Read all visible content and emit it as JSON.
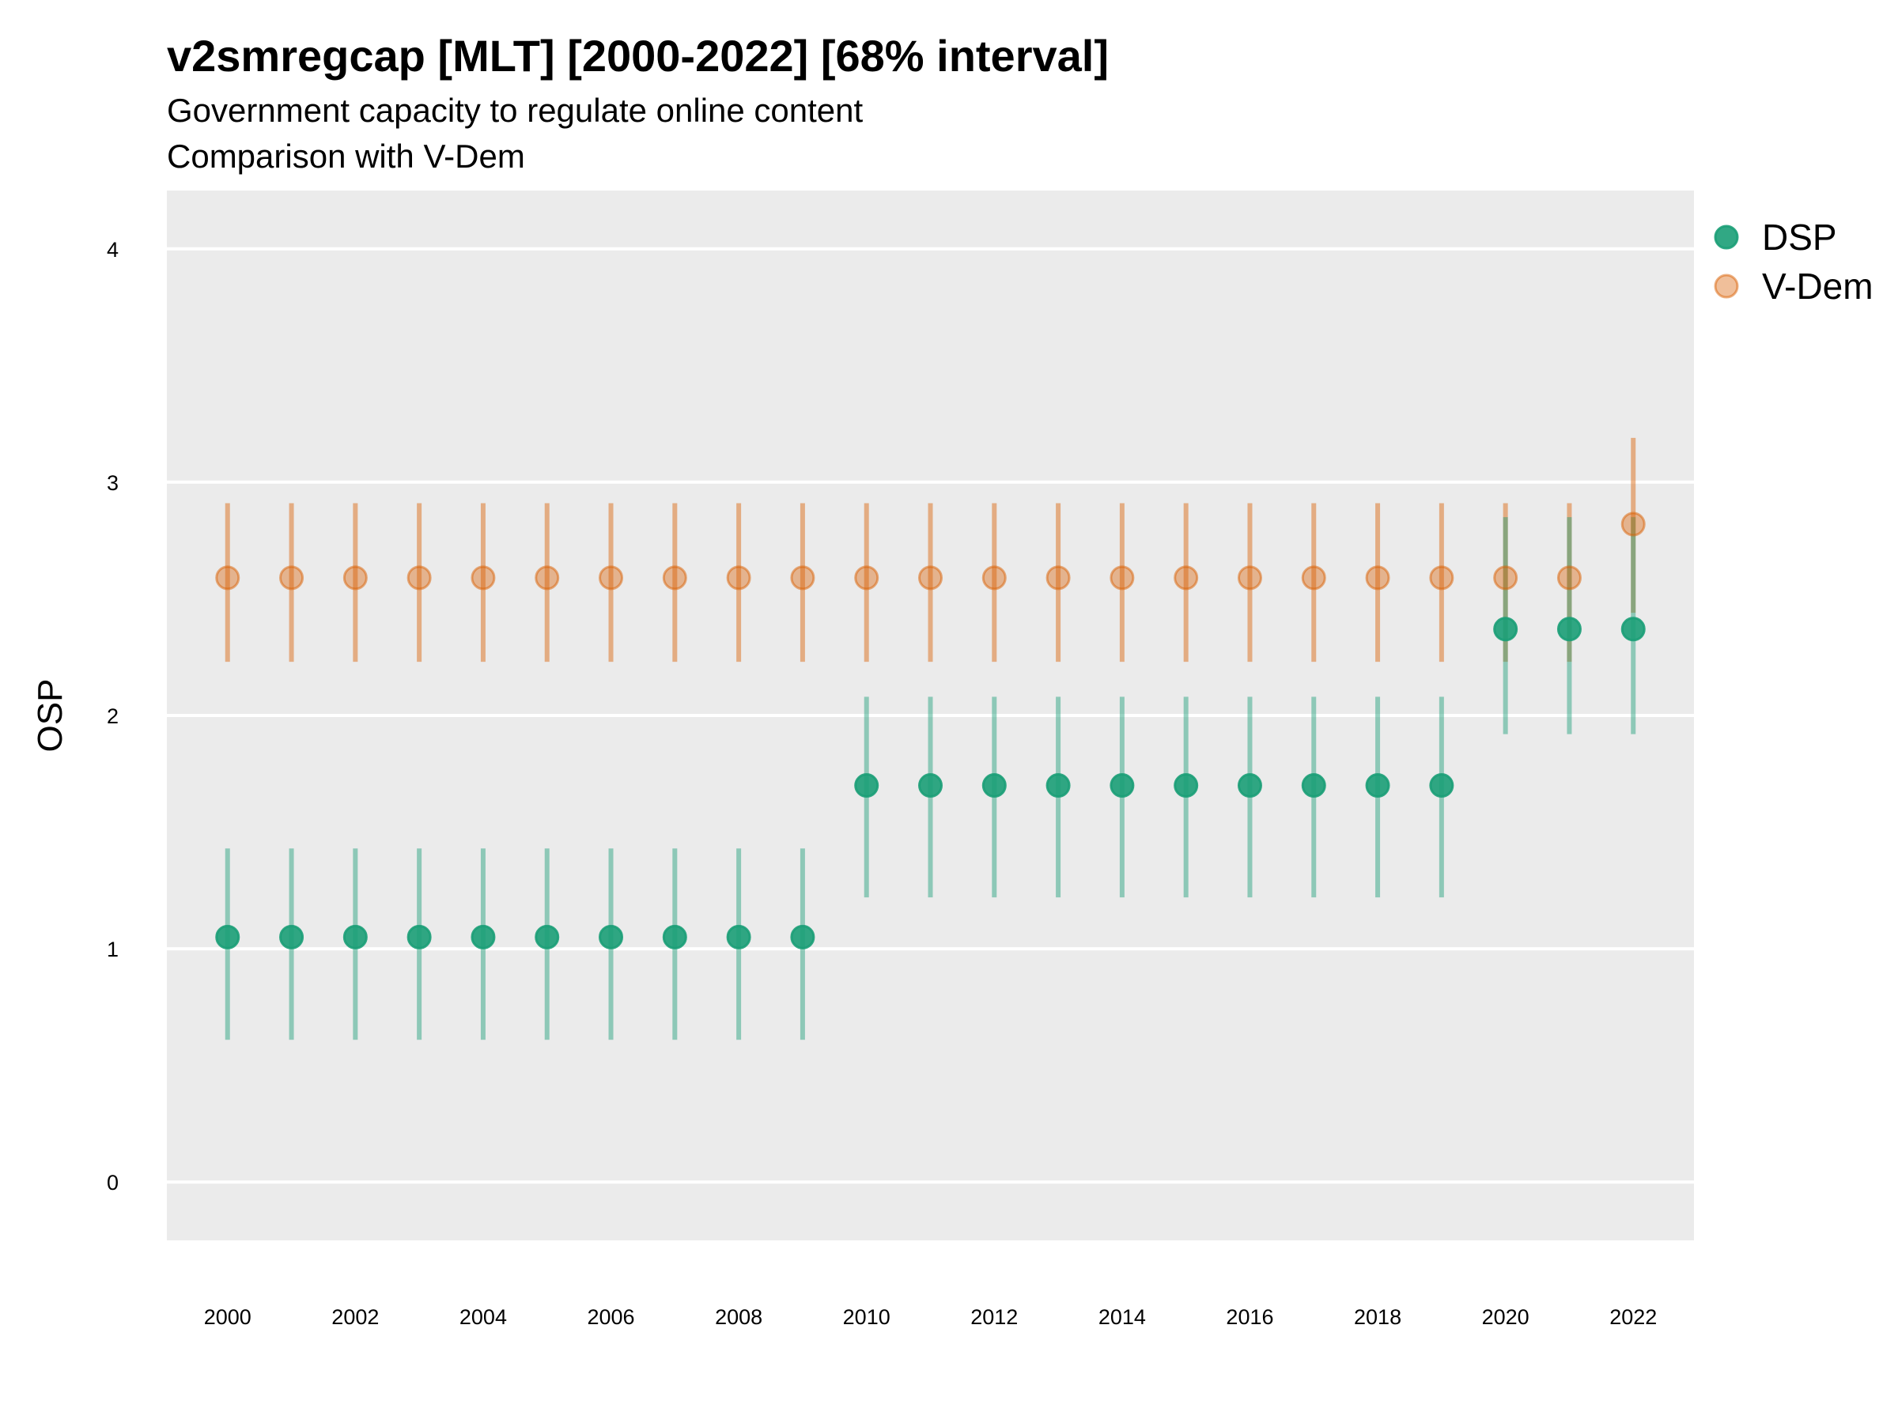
{
  "title": "v2smregcap [MLT] [2000-2022] [68% interval]",
  "subtitle": "Government capacity to regulate online content",
  "subtitle2": "Comparison with V-Dem",
  "chart_data": {
    "type": "scatter",
    "title": "v2smregcap [MLT] [2000-2022] [68% interval]",
    "ylabel": "OSP",
    "xlabel": "",
    "ylim": [
      -0.25,
      4.25
    ],
    "yticks": [
      0,
      1,
      2,
      3,
      4
    ],
    "x": [
      2000,
      2001,
      2002,
      2003,
      2004,
      2005,
      2006,
      2007,
      2008,
      2009,
      2010,
      2011,
      2012,
      2013,
      2014,
      2015,
      2016,
      2017,
      2018,
      2019,
      2020,
      2021,
      2022
    ],
    "xticks": [
      2000,
      2002,
      2004,
      2006,
      2008,
      2010,
      2012,
      2014,
      2016,
      2018,
      2020,
      2022
    ],
    "grid": true,
    "legend_position": "right",
    "series": [
      {
        "name": "DSP",
        "color": "#1b9e77",
        "values": [
          1.05,
          1.05,
          1.05,
          1.05,
          1.05,
          1.05,
          1.05,
          1.05,
          1.05,
          1.05,
          1.7,
          1.7,
          1.7,
          1.7,
          1.7,
          1.7,
          1.7,
          1.7,
          1.7,
          1.7,
          2.37,
          2.37,
          2.37
        ],
        "lower": [
          0.61,
          0.61,
          0.61,
          0.61,
          0.61,
          0.61,
          0.61,
          0.61,
          0.61,
          0.61,
          1.22,
          1.22,
          1.22,
          1.22,
          1.22,
          1.22,
          1.22,
          1.22,
          1.22,
          1.22,
          1.92,
          1.92,
          1.92
        ],
        "upper": [
          1.43,
          1.43,
          1.43,
          1.43,
          1.43,
          1.43,
          1.43,
          1.43,
          1.43,
          1.43,
          2.08,
          2.08,
          2.08,
          2.08,
          2.08,
          2.08,
          2.08,
          2.08,
          2.08,
          2.08,
          2.85,
          2.85,
          2.85
        ]
      },
      {
        "name": "V-Dem",
        "color": "#d95f02",
        "values": [
          2.59,
          2.59,
          2.59,
          2.59,
          2.59,
          2.59,
          2.59,
          2.59,
          2.59,
          2.59,
          2.59,
          2.59,
          2.59,
          2.59,
          2.59,
          2.59,
          2.59,
          2.59,
          2.59,
          2.59,
          2.59,
          2.59,
          2.82
        ],
        "lower": [
          2.23,
          2.23,
          2.23,
          2.23,
          2.23,
          2.23,
          2.23,
          2.23,
          2.23,
          2.23,
          2.23,
          2.23,
          2.23,
          2.23,
          2.23,
          2.23,
          2.23,
          2.23,
          2.23,
          2.23,
          2.23,
          2.23,
          2.44
        ],
        "upper": [
          2.91,
          2.91,
          2.91,
          2.91,
          2.91,
          2.91,
          2.91,
          2.91,
          2.91,
          2.91,
          2.91,
          2.91,
          2.91,
          2.91,
          2.91,
          2.91,
          2.91,
          2.91,
          2.91,
          2.91,
          2.91,
          2.91,
          3.19
        ]
      }
    ]
  }
}
